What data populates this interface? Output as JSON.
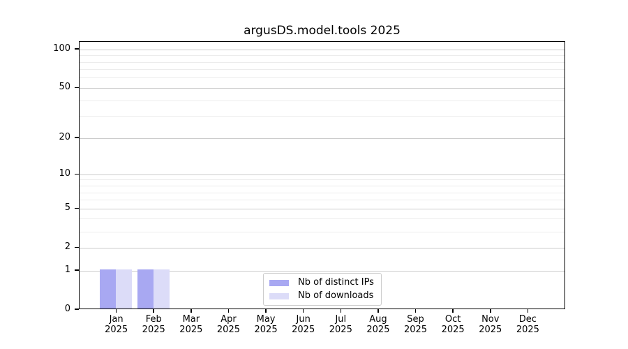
{
  "chart_data": {
    "type": "bar",
    "title": "argusDS.model.tools 2025",
    "categories": [
      "Jan",
      "Feb",
      "Mar",
      "Apr",
      "May",
      "Jun",
      "Jul",
      "Aug",
      "Sep",
      "Oct",
      "Nov",
      "Dec"
    ],
    "x_year_label": "2025",
    "series": [
      {
        "name": "Nb of distinct IPs",
        "color": "#a8a8f2",
        "values": [
          1,
          1,
          0,
          0,
          0,
          0,
          0,
          0,
          0,
          0,
          0,
          0
        ]
      },
      {
        "name": "Nb of downloads",
        "color": "#dcdcf8",
        "values": [
          1,
          1,
          0,
          0,
          0,
          0,
          0,
          0,
          0,
          0,
          0,
          0
        ]
      }
    ],
    "xlabel": "",
    "ylabel": "",
    "y_scale": "log1p",
    "ylim": [
      0,
      115
    ],
    "y_major_ticks": [
      0,
      1,
      2,
      5,
      10,
      20,
      50,
      100
    ],
    "y_minor_ticks": [
      3,
      4,
      6,
      7,
      8,
      9,
      30,
      40,
      60,
      70,
      80,
      90
    ],
    "grid": true,
    "legend_position": "lower center"
  },
  "colors": {
    "grid_major": "#cbcbcb",
    "grid_minor": "#ececec",
    "spine": "#000000",
    "legend_border": "#cccccc"
  }
}
